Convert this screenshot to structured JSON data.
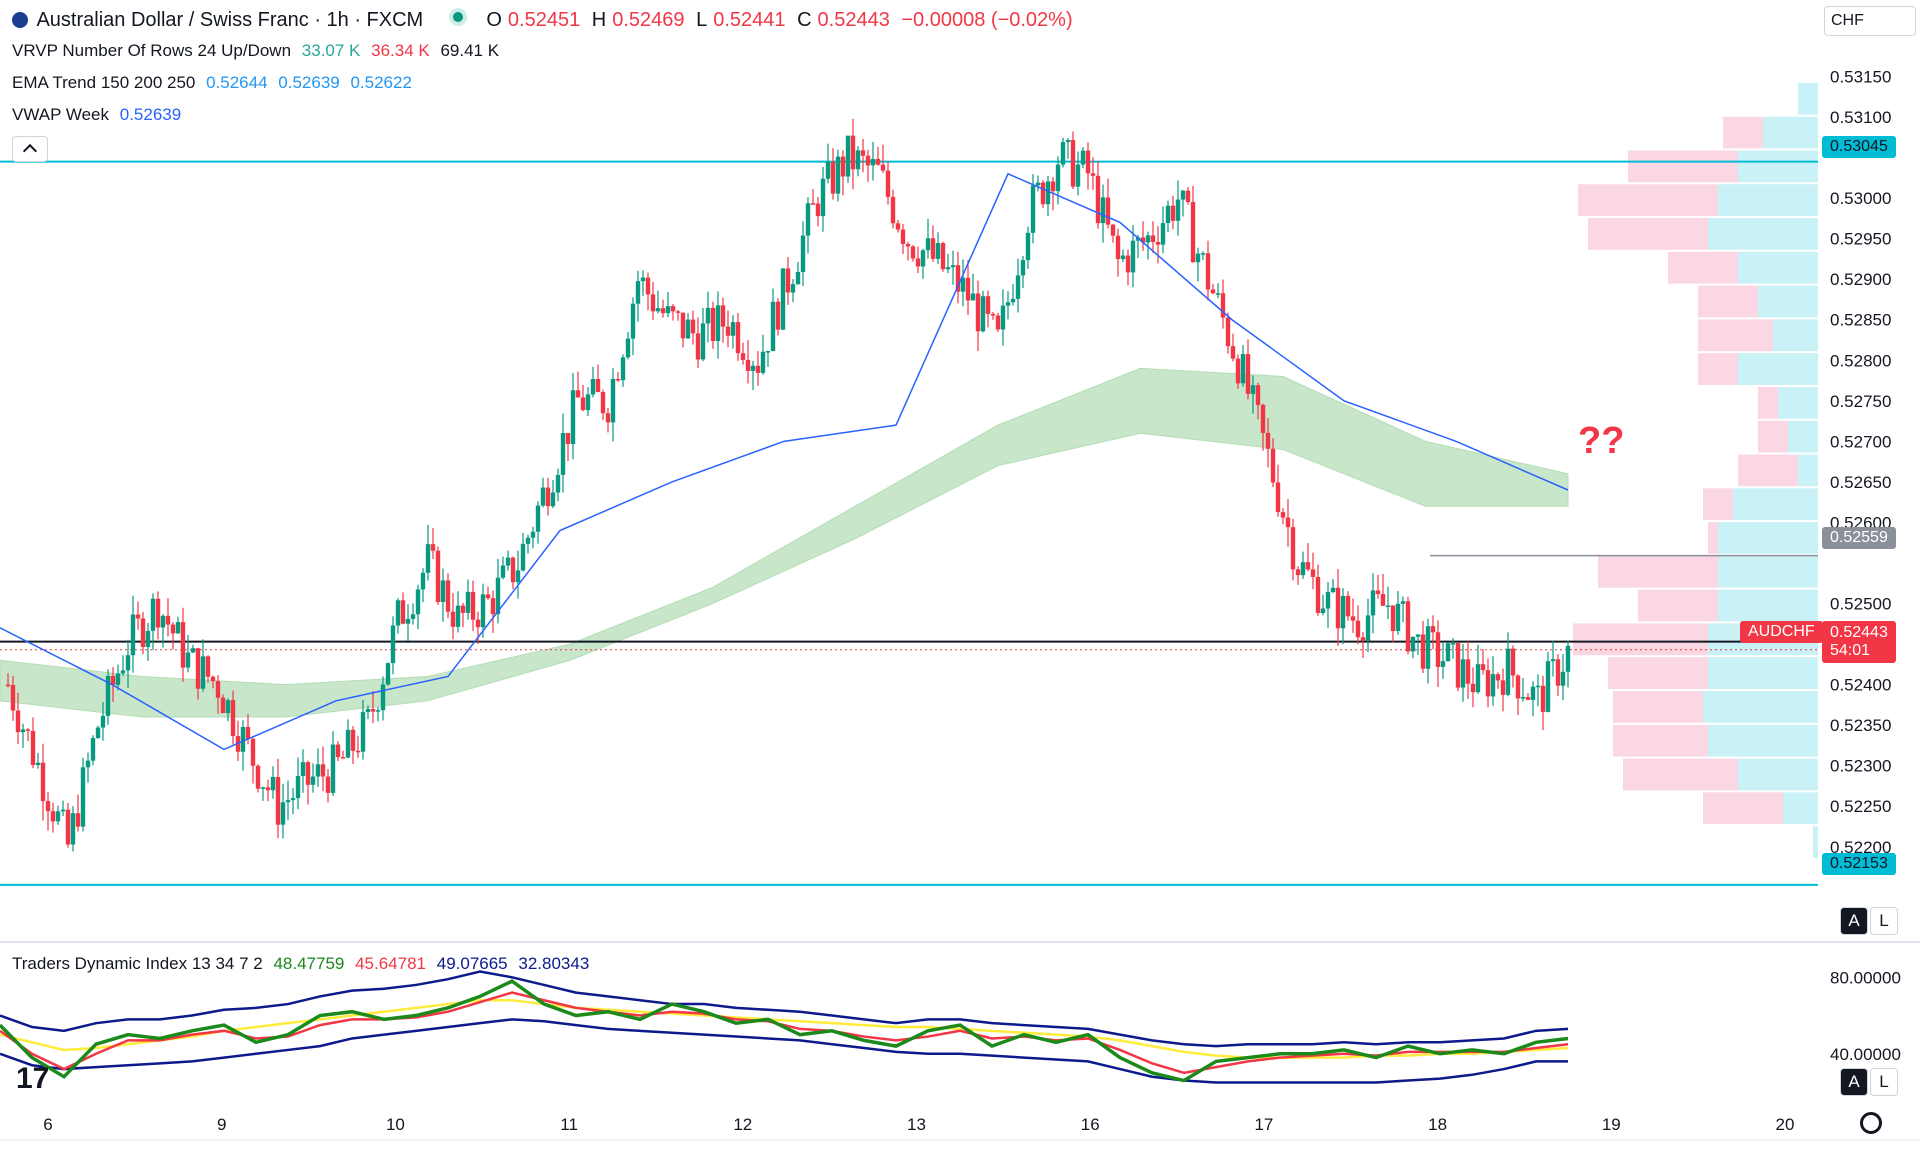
{
  "header": {
    "symbol_title": "Australian Dollar / Swiss Franc · 1h · FXCM",
    "open_label": "O",
    "open": "0.52451",
    "high_label": "H",
    "high": "0.52469",
    "low_label": "L",
    "low": "0.52441",
    "close_label": "C",
    "close": "0.52443",
    "change": "−0.00008 (−0.02%)",
    "currency": "CHF"
  },
  "indicators": {
    "vrvp": {
      "label": "VRVP Number Of Rows 24 Up/Down",
      "v1": "33.07 K",
      "v2": "36.34 K",
      "v3": "69.41 K"
    },
    "ema": {
      "label": "EMA Trend 150 200 250",
      "v1": "0.52644",
      "v2": "0.52639",
      "v3": "0.52622"
    },
    "vwap": {
      "label": "VWAP Week",
      "v1": "0.52639"
    },
    "tdi": {
      "label": "Traders Dynamic Index 13 34 7 2",
      "v1": "48.47759",
      "v2": "45.64781",
      "v3": "49.07665",
      "v4": "32.80343"
    }
  },
  "annotation": "??",
  "price_tags": {
    "upper_line": "0.53045",
    "poc": "0.52559",
    "current_symbol": "AUDCHF",
    "current_price": "0.52443",
    "countdown": "54:01",
    "lower_line": "0.52153"
  },
  "buttons": {
    "auto": "A",
    "log": "L"
  },
  "colors": {
    "up": "#089981",
    "down": "#f23645",
    "vwap": "#2962ff",
    "ema_band": "#a5d6a7",
    "tdi_green": "#1b8a1b",
    "tdi_red": "#f23645",
    "tdi_yellow": "#ffeb3b",
    "tdi_band": "#0d1a8c"
  },
  "chart_data": [
    {
      "type": "candlestick",
      "title": "Australian Dollar / Swiss Franc · 1h · FXCM",
      "x_ticks": [
        "6",
        "9",
        "10",
        "11",
        "12",
        "13",
        "16",
        "17",
        "18",
        "19",
        "20"
      ],
      "y_ticks": [
        "0.53150",
        "0.53100",
        "0.53000",
        "0.52950",
        "0.52900",
        "0.52850",
        "0.52800",
        "0.52750",
        "0.52700",
        "0.52650",
        "0.52600",
        "0.52500",
        "0.52400",
        "0.52350",
        "0.52300",
        "0.52250",
        "0.52200"
      ],
      "ylim": [
        0.52085,
        0.53195
      ],
      "horizontal_lines": [
        0.53045,
        0.52153,
        0.52453
      ],
      "close_path": [
        0.524,
        0.523,
        0.522,
        0.5235,
        0.5245,
        0.525,
        0.5243,
        0.524,
        0.5232,
        0.5225,
        0.5228,
        0.523,
        0.5235,
        0.5248,
        0.5255,
        0.5248,
        0.525,
        0.5255,
        0.5265,
        0.5275,
        0.5275,
        0.529,
        0.5285,
        0.5283,
        0.5285,
        0.528,
        0.529,
        0.53,
        0.5305,
        0.5303,
        0.5295,
        0.5292,
        0.5288,
        0.5282,
        0.5298,
        0.5305,
        0.5303,
        0.5292,
        0.5295,
        0.53,
        0.529,
        0.528,
        0.5268,
        0.5255,
        0.525,
        0.5248,
        0.525,
        0.5245,
        0.5243,
        0.524,
        0.5242,
        0.5238,
        0.5244
      ],
      "ema_band_upper": [
        0.5243,
        0.5241,
        0.524,
        0.5241,
        0.5245,
        0.5252,
        0.5262,
        0.5272,
        0.5279,
        0.5278,
        0.527,
        0.5266
      ],
      "ema_band_lower": [
        0.5238,
        0.5236,
        0.5236,
        0.5238,
        0.5243,
        0.525,
        0.5258,
        0.5267,
        0.5271,
        0.5269,
        0.5262,
        0.5262
      ],
      "vwap": [
        0.5247,
        0.524,
        0.5232,
        0.5238,
        0.5241,
        0.5259,
        0.5265,
        0.527,
        0.5272,
        0.5303,
        0.5297,
        0.5285,
        0.5275,
        0.527,
        0.5264
      ],
      "volume_profile_up": [
        0,
        20,
        55,
        80,
        100,
        110,
        80,
        60,
        45,
        80,
        40,
        30,
        20,
        85,
        100,
        100,
        100,
        110,
        110,
        115,
        110,
        80,
        35,
        5
      ],
      "volume_profile_down": [
        0,
        0,
        40,
        110,
        140,
        120,
        70,
        60,
        75,
        40,
        20,
        30,
        60,
        30,
        10,
        120,
        80,
        135,
        100,
        90,
        95,
        115,
        80,
        0
      ]
    },
    {
      "type": "line",
      "title": "Traders Dynamic Index 13 34 7 2",
      "y_ticks": [
        "80.00000",
        "40.00000"
      ],
      "ylim": [
        20,
        88
      ],
      "series": [
        {
          "name": "green",
          "values": [
            55,
            38,
            28,
            45,
            50,
            48,
            52,
            55,
            46,
            50,
            60,
            62,
            58,
            60,
            64,
            70,
            78,
            66,
            60,
            62,
            58,
            66,
            62,
            56,
            58,
            50,
            52,
            47,
            44,
            52,
            55,
            44,
            50,
            46,
            50,
            38,
            30,
            26,
            36,
            38,
            40,
            40,
            42,
            38,
            44,
            40,
            42,
            40,
            46,
            48
          ]
        },
        {
          "name": "red",
          "values": [
            52,
            40,
            32,
            40,
            47,
            47,
            50,
            52,
            48,
            49,
            55,
            58,
            58,
            59,
            62,
            67,
            72,
            68,
            64,
            62,
            60,
            62,
            61,
            58,
            57,
            53,
            52,
            49,
            47,
            49,
            52,
            48,
            49,
            47,
            48,
            42,
            35,
            30,
            33,
            36,
            38,
            39,
            40,
            39,
            41,
            41,
            41,
            41,
            43,
            45
          ]
        },
        {
          "name": "yellow",
          "values": [
            50,
            46,
            42,
            43,
            45,
            47,
            49,
            52,
            54,
            56,
            58,
            60,
            62,
            64,
            66,
            68,
            68,
            66,
            64,
            63,
            62,
            61,
            60,
            59,
            58,
            57,
            56,
            55,
            54,
            54,
            53,
            52,
            51,
            50,
            49,
            47,
            44,
            41,
            39,
            38,
            38,
            38,
            38,
            39,
            39,
            40,
            40,
            41,
            42,
            43
          ]
        },
        {
          "name": "upper",
          "values": [
            60,
            54,
            52,
            56,
            58,
            58,
            60,
            63,
            64,
            66,
            70,
            73,
            74,
            76,
            79,
            83,
            80,
            76,
            72,
            70,
            68,
            66,
            66,
            64,
            63,
            62,
            60,
            58,
            56,
            58,
            58,
            56,
            55,
            54,
            53,
            50,
            47,
            45,
            44,
            45,
            45,
            45,
            46,
            45,
            46,
            46,
            47,
            48,
            52,
            53
          ]
        },
        {
          "name": "lower",
          "values": [
            40,
            34,
            32,
            33,
            34,
            35,
            36,
            38,
            40,
            42,
            44,
            48,
            50,
            52,
            54,
            56,
            58,
            57,
            55,
            53,
            52,
            51,
            50,
            49,
            48,
            47,
            45,
            43,
            41,
            40,
            40,
            39,
            38,
            37,
            36,
            32,
            28,
            26,
            25,
            25,
            25,
            25,
            25,
            25,
            26,
            27,
            29,
            32,
            36,
            36
          ]
        }
      ]
    }
  ]
}
